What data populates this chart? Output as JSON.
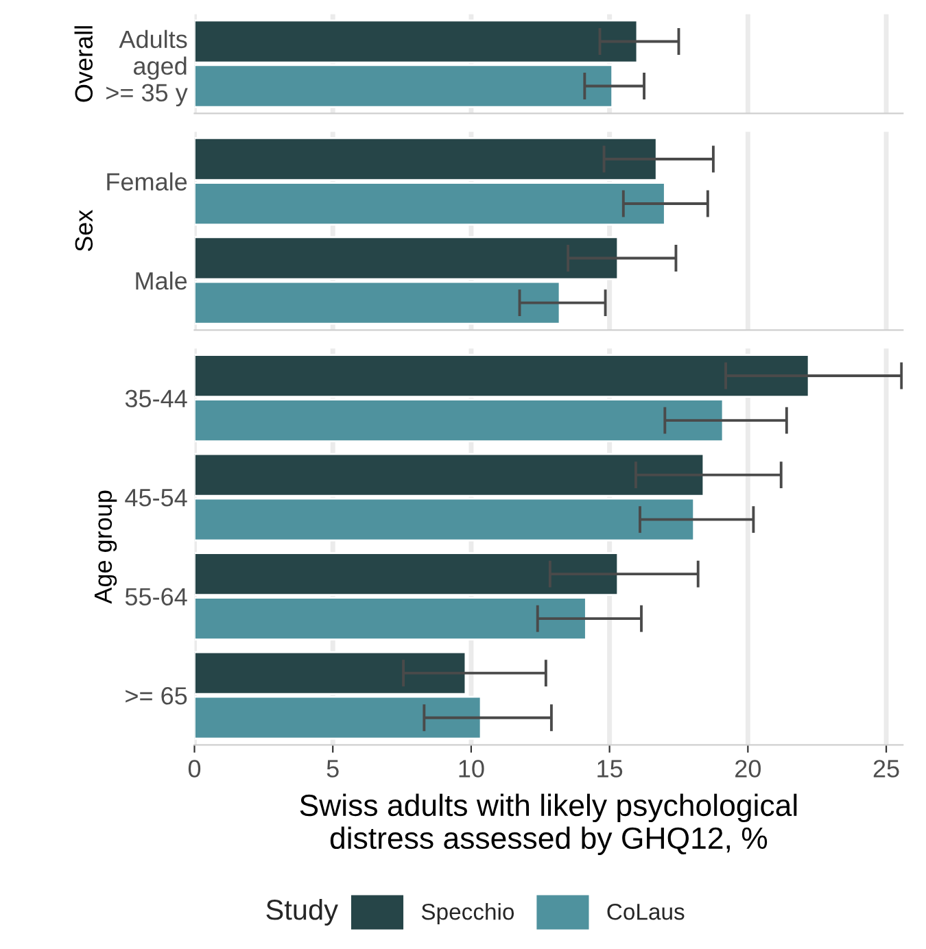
{
  "chart_data": [
    {
      "type": "bar",
      "orientation": "horizontal",
      "ylabel": "Overall",
      "categories": [
        "Adults\naged\n>= 35 y"
      ],
      "xlim": [
        0,
        25.6
      ],
      "xticks": [
        0,
        5,
        10,
        15,
        20,
        25
      ],
      "tick_labels": "y",
      "grid": "x",
      "legend": false,
      "series": [
        {
          "color": "#264548",
          "values": [
            16.0
          ],
          "errors": [
            [
              14.65,
              17.5
            ]
          ]
        },
        {
          "color": "#4f929e",
          "values": [
            15.1
          ],
          "errors": [
            [
              14.1,
              16.25
            ]
          ]
        }
      ]
    },
    {
      "type": "bar",
      "orientation": "horizontal",
      "ylabel": "Sex",
      "categories": [
        "Female",
        "Male"
      ],
      "xlim": [
        0,
        25.6
      ],
      "xticks": [
        0,
        5,
        10,
        15,
        20,
        25
      ],
      "tick_labels": "y",
      "grid": "x",
      "legend": false,
      "series": [
        {
          "color": "#264548",
          "values": [
            16.7,
            15.3
          ],
          "errors": [
            [
              14.8,
              18.75
            ],
            [
              13.5,
              17.4
            ]
          ]
        },
        {
          "color": "#4f929e",
          "values": [
            17.0,
            13.2
          ],
          "errors": [
            [
              15.5,
              18.55
            ],
            [
              11.75,
              14.85
            ]
          ]
        }
      ]
    },
    {
      "type": "bar",
      "orientation": "horizontal",
      "ylabel": "Age group",
      "xlabel": "Swiss adults with likely psychological\ndistress assessed by GHQ12, %",
      "legend_title": "Study",
      "legend": "bottom",
      "categories": [
        "35-44",
        "45-54",
        "55-64",
        ">= 65"
      ],
      "xlim": [
        0,
        25.6
      ],
      "xticks": [
        0,
        5,
        10,
        15,
        20,
        25
      ],
      "grid": "x",
      "series": [
        {
          "name": "Specchio",
          "color": "#264548",
          "values": [
            22.2,
            18.4,
            15.3,
            9.8
          ],
          "errors": [
            [
              19.2,
              25.55
            ],
            [
              15.95,
              21.2
            ],
            [
              12.85,
              18.2
            ],
            [
              7.55,
              12.7
            ]
          ]
        },
        {
          "name": "CoLaus",
          "color": "#4f929e",
          "values": [
            19.1,
            18.05,
            14.15,
            10.35
          ],
          "errors": [
            [
              17.0,
              21.4
            ],
            [
              16.1,
              20.2
            ],
            [
              12.4,
              16.15
            ],
            [
              8.3,
              12.9
            ]
          ]
        }
      ]
    }
  ]
}
